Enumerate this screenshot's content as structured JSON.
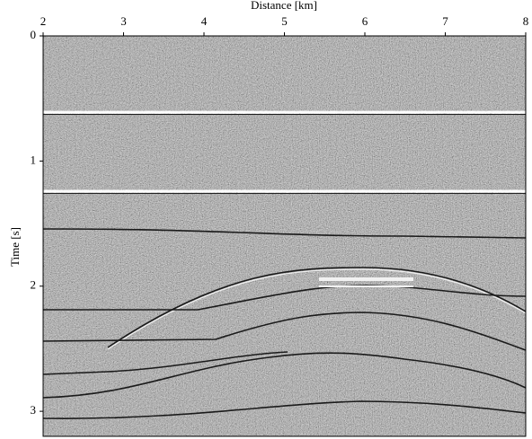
{
  "chart_data": {
    "type": "image",
    "xlabel": "Distance [km]",
    "ylabel": "Time [s]",
    "xlim": [
      2,
      8
    ],
    "xticks": [
      2,
      3,
      4,
      5,
      6,
      7,
      8
    ],
    "ylim": [
      3.2,
      0
    ],
    "yticks": [
      0,
      1,
      2,
      3
    ]
  }
}
